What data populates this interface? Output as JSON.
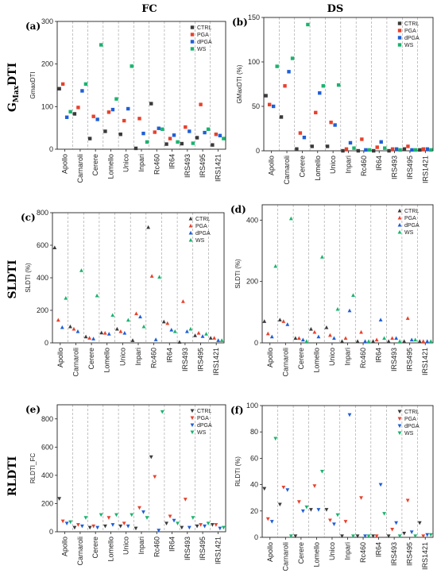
{
  "figure": {
    "col_titles": [
      "FC",
      "DS"
    ],
    "row_titles": [
      {
        "main": "G",
        "sub": "Max",
        "rest": "DTI"
      },
      {
        "main": "SLDTI",
        "sub": "",
        "rest": ""
      },
      {
        "main": "RLDTI",
        "sub": "",
        "rest": ""
      }
    ]
  },
  "series_colors": {
    "CTRL": "#3a3a3a",
    "PGA": "#e8412c",
    "dPGA": "#1f5fd6",
    "WS": "#19b46e"
  },
  "chart_data": [
    {
      "type": "scatter",
      "letter": "(a)",
      "marker": "square",
      "ylabel": "GmaxDTI",
      "ylim": [
        0,
        300
      ],
      "yticks": [
        0,
        100,
        200,
        300
      ],
      "categories": [
        "Apollo",
        "Carnaroli",
        "Cerere",
        "Lomello",
        "Unico",
        "Inpari",
        "Rc460",
        "IR64",
        "IRS493",
        "IRS495",
        "IRS1421"
      ],
      "legend": [
        "CTRL",
        "PGA",
        "dPGA",
        "WS"
      ],
      "series": [
        {
          "name": "CTRL",
          "values": [
            142,
            83,
            25,
            42,
            35,
            2,
            107,
            12,
            13,
            27,
            10
          ]
        },
        {
          "name": "PGA",
          "values": [
            153,
            98,
            77,
            87,
            67,
            72,
            40,
            25,
            52,
            105,
            35
          ]
        },
        {
          "name": "dPGA",
          "values": [
            75,
            137,
            70,
            93,
            95,
            37,
            49,
            33,
            42,
            39,
            32
          ]
        },
        {
          "name": "WS",
          "values": [
            88,
            153,
            245,
            118,
            195,
            17,
            47,
            17,
            14,
            47,
            25
          ]
        }
      ]
    },
    {
      "type": "scatter",
      "letter": "(b)",
      "marker": "square",
      "ylabel": "GMaxDTI (%)",
      "ylim": [
        0,
        150
      ],
      "yticks": [
        0,
        50,
        100,
        150
      ],
      "categories": [
        "Apollo",
        "Carnaroli",
        "Cerere",
        "Lomello",
        "Unico",
        "Inpari",
        "Rc460",
        "IR64",
        "IRS493",
        "IRS495",
        "IRS1421"
      ],
      "legend": [
        "CTRL",
        "PGA",
        "dPGA",
        "WS"
      ],
      "series": [
        {
          "name": "CTRL",
          "values": [
            62,
            38,
            2,
            5,
            5,
            0,
            0,
            0,
            0,
            2,
            1
          ]
        },
        {
          "name": "PGA",
          "values": [
            52,
            73,
            20,
            43,
            32,
            2,
            13,
            4,
            2,
            5,
            2
          ]
        },
        {
          "name": "dPGA",
          "values": [
            50,
            89,
            15,
            65,
            29,
            9,
            1,
            10,
            2,
            1,
            2
          ]
        },
        {
          "name": "WS",
          "values": [
            95,
            104,
            142,
            73,
            74,
            3,
            1,
            3,
            1,
            1,
            1
          ]
        }
      ]
    },
    {
      "type": "scatter",
      "letter": "(c)",
      "marker": "triangle-up",
      "ylabel": "SLDTI (%)",
      "ylim": [
        0,
        800
      ],
      "yticks": [
        0,
        200,
        400,
        600,
        800
      ],
      "categories": [
        "Apollo",
        "Carnaroli",
        "Cerere",
        "Lomello",
        "Unico",
        "Inpari",
        "Rc460",
        "IR64",
        "IRS493",
        "IRS495",
        "IRS1421"
      ],
      "legend": [
        "CTRL",
        "PGA",
        "dPGA",
        "WS"
      ],
      "series": [
        {
          "name": "CTRL",
          "values": [
            585,
            100,
            38,
            62,
            85,
            15,
            710,
            130,
            5,
            45,
            30
          ]
        },
        {
          "name": "PGA",
          "values": [
            140,
            85,
            30,
            60,
            70,
            180,
            410,
            120,
            255,
            60,
            30
          ]
        },
        {
          "name": "dPGA",
          "values": [
            95,
            70,
            25,
            55,
            60,
            160,
            20,
            80,
            70,
            40,
            15
          ]
        },
        {
          "name": "WS",
          "values": [
            275,
            445,
            290,
            170,
            140,
            100,
            405,
            70,
            85,
            55,
            15
          ]
        }
      ]
    },
    {
      "type": "scatter",
      "letter": "(d)",
      "marker": "triangle-up",
      "ylabel": "SLDTI (%)",
      "ylim": [
        0,
        450
      ],
      "yticks": [
        0,
        200,
        400
      ],
      "categories": [
        "Apollo",
        "Carnaroli",
        "Cerere",
        "Lomello",
        "Unico",
        "Inpari",
        "Rc460",
        "IR64",
        "IRS493",
        "IRS495",
        "IRS1421"
      ],
      "legend": [
        "CTRL",
        "PGA",
        "dPGA",
        "WS"
      ],
      "series": [
        {
          "name": "CTRL",
          "values": [
            70,
            75,
            15,
            45,
            50,
            5,
            5,
            5,
            5,
            5,
            5
          ]
        },
        {
          "name": "PGA",
          "values": [
            30,
            70,
            15,
            35,
            25,
            15,
            35,
            10,
            15,
            80,
            5
          ]
        },
        {
          "name": "dPGA",
          "values": [
            20,
            60,
            10,
            20,
            15,
            105,
            5,
            75,
            15,
            10,
            5
          ]
        },
        {
          "name": "WS",
          "values": [
            250,
            405,
            5,
            280,
            110,
            155,
            5,
            15,
            5,
            10,
            5
          ]
        }
      ]
    },
    {
      "type": "scatter",
      "letter": "(e)",
      "marker": "triangle-down",
      "ylabel": "RLDTI_FC",
      "ylim": [
        0,
        900
      ],
      "yticks": [
        0,
        200,
        400,
        600,
        800
      ],
      "categories": [
        "Apollo",
        "Carnaroli",
        "Cerere",
        "Lomello",
        "Unico",
        "Inpari",
        "Rc460",
        "IR64",
        "IRS493",
        "IRS495",
        "IRS1421"
      ],
      "legend": [
        "CTRL",
        "PGA",
        "dPGA",
        "WS"
      ],
      "series": [
        {
          "name": "CTRL",
          "values": [
            235,
            30,
            30,
            40,
            40,
            25,
            530,
            60,
            30,
            40,
            50
          ]
        },
        {
          "name": "PGA",
          "values": [
            75,
            50,
            40,
            100,
            60,
            170,
            390,
            110,
            230,
            50,
            50
          ]
        },
        {
          "name": "dPGA",
          "values": [
            60,
            40,
            30,
            50,
            40,
            140,
            10,
            80,
            30,
            40,
            25
          ]
        },
        {
          "name": "WS",
          "values": [
            70,
            100,
            120,
            120,
            120,
            100,
            850,
            60,
            100,
            60,
            30
          ]
        }
      ]
    },
    {
      "type": "scatter",
      "letter": "(f)",
      "marker": "triangle-down",
      "ylabel": "RLDTI (%)",
      "ylim": [
        0,
        100
      ],
      "yticks": [
        0,
        20,
        40,
        60,
        80,
        100
      ],
      "categories": [
        "Apollo",
        "Carnaroli",
        "Cerere",
        "Lomello",
        "Unico",
        "Inpari",
        "Rc460",
        "IR64",
        "IRS493",
        "IRS495",
        "IRS1421"
      ],
      "legend": [
        "CTRL",
        "PGA",
        "dPGA",
        "WS"
      ],
      "series": [
        {
          "name": "CTRL",
          "values": [
            37,
            25,
            1,
            21,
            21,
            1,
            1,
            1,
            1,
            3,
            11
          ]
        },
        {
          "name": "PGA",
          "values": [
            14,
            38,
            27,
            39,
            13,
            12,
            30,
            1,
            6,
            28,
            1
          ]
        },
        {
          "name": "dPGA",
          "values": [
            12,
            36,
            20,
            21,
            10,
            93,
            1,
            40,
            11,
            4,
            2
          ]
        },
        {
          "name": "WS",
          "values": [
            75,
            1,
            23,
            50,
            17,
            1,
            1,
            18,
            1,
            1,
            2
          ]
        }
      ]
    }
  ]
}
